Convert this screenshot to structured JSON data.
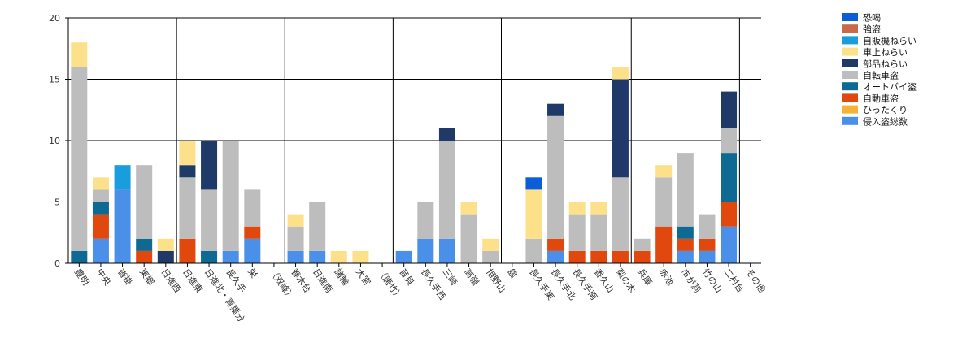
{
  "chart_data": {
    "type": "bar",
    "stacked": true,
    "ylim": [
      0,
      20
    ],
    "yticks": [
      0,
      5,
      10,
      15,
      20
    ],
    "grid": true,
    "legend_position": "top-right",
    "categories": [
      "豊明",
      "中央",
      "沓掛",
      "東郷",
      "日進西",
      "日進東",
      "日進北・青葉分",
      "長久手",
      "栄",
      "（双峰）",
      "春木台",
      "日進南",
      "諸輪",
      "大宮",
      "（唐竹）",
      "音貝",
      "長久手西",
      "三崎",
      "高嶺",
      "相野山",
      "舘",
      "長久手東",
      "長久手北",
      "長久手南",
      "香久山",
      "梨の木",
      "兵庫",
      "赤池",
      "市が洞",
      "竹の山",
      "二村台",
      "その他"
    ],
    "separators_after": [
      4,
      9,
      14,
      19,
      25,
      30
    ],
    "series": [
      {
        "name": "恐喝",
        "color": "#0b5ed7",
        "values": [
          0,
          0,
          0,
          0,
          0,
          0,
          0,
          0,
          0,
          0,
          0,
          0,
          0,
          0,
          0,
          0,
          0,
          0,
          0,
          0,
          0,
          1,
          0,
          0,
          0,
          0,
          0,
          0,
          0,
          0,
          0,
          0
        ]
      },
      {
        "name": "強盗",
        "color": "#c8694a",
        "values": [
          0,
          0,
          0,
          0,
          0,
          0,
          0,
          0,
          0,
          0,
          0,
          0,
          0,
          0,
          0,
          0,
          0,
          0,
          0,
          0,
          0,
          0,
          0,
          0,
          0,
          0,
          0,
          0,
          0,
          0,
          0,
          0
        ]
      },
      {
        "name": "自販機ねらい",
        "color": "#1a9ddc",
        "values": [
          0,
          0,
          2,
          0,
          0,
          0,
          0,
          0,
          0,
          0,
          0,
          0,
          0,
          0,
          0,
          0,
          0,
          0,
          0,
          0,
          0,
          0,
          0,
          0,
          0,
          0,
          0,
          0,
          0,
          0,
          0,
          0
        ]
      },
      {
        "name": "車上ねらい",
        "color": "#fde18a",
        "values": [
          2,
          1,
          0,
          0,
          1,
          2,
          0,
          0,
          0,
          0,
          1,
          0,
          1,
          1,
          0,
          0,
          0,
          0,
          1,
          1,
          0,
          4,
          0,
          1,
          1,
          1,
          0,
          1,
          0,
          0,
          0,
          0
        ]
      },
      {
        "name": "部品ねらい",
        "color": "#1f3a68",
        "values": [
          0,
          0,
          0,
          0,
          1,
          1,
          4,
          0,
          0,
          0,
          0,
          0,
          0,
          0,
          0,
          0,
          0,
          1,
          0,
          0,
          0,
          0,
          1,
          0,
          0,
          8,
          0,
          0,
          0,
          0,
          3,
          0
        ]
      },
      {
        "name": "自転車盗",
        "color": "#bdbdbd",
        "values": [
          15,
          1,
          0,
          6,
          0,
          5,
          5,
          9,
          3,
          0,
          2,
          4,
          0,
          0,
          0,
          0,
          3,
          8,
          4,
          1,
          0,
          2,
          10,
          3,
          3,
          6,
          1,
          4,
          6,
          2,
          2,
          0
        ]
      },
      {
        "name": "オートバイ盗",
        "color": "#0e6a92",
        "values": [
          1,
          1,
          0,
          1,
          0,
          0,
          1,
          0,
          0,
          0,
          0,
          0,
          0,
          0,
          0,
          0,
          0,
          0,
          0,
          0,
          0,
          0,
          0,
          0,
          0,
          0,
          0,
          0,
          1,
          0,
          4,
          0
        ]
      },
      {
        "name": "自動車盗",
        "color": "#e0480e",
        "values": [
          0,
          2,
          0,
          1,
          0,
          2,
          0,
          0,
          1,
          0,
          0,
          0,
          0,
          0,
          0,
          0,
          0,
          0,
          0,
          0,
          0,
          0,
          1,
          1,
          1,
          1,
          1,
          3,
          1,
          1,
          2,
          0
        ]
      },
      {
        "name": "ひったくり",
        "color": "#f5b234",
        "values": [
          0,
          0,
          0,
          0,
          0,
          0,
          0,
          0,
          0,
          0,
          0,
          0,
          0,
          0,
          0,
          0,
          0,
          0,
          0,
          0,
          0,
          0,
          0,
          0,
          0,
          0,
          0,
          0,
          0,
          0,
          0,
          0
        ]
      },
      {
        "name": "侵入盗総数",
        "color": "#4a90e8",
        "values": [
          0,
          2,
          6,
          0,
          0,
          0,
          0,
          1,
          2,
          0,
          1,
          1,
          0,
          0,
          0,
          1,
          2,
          2,
          0,
          0,
          0,
          0,
          1,
          0,
          0,
          0,
          0,
          0,
          1,
          1,
          3,
          0
        ]
      }
    ]
  }
}
